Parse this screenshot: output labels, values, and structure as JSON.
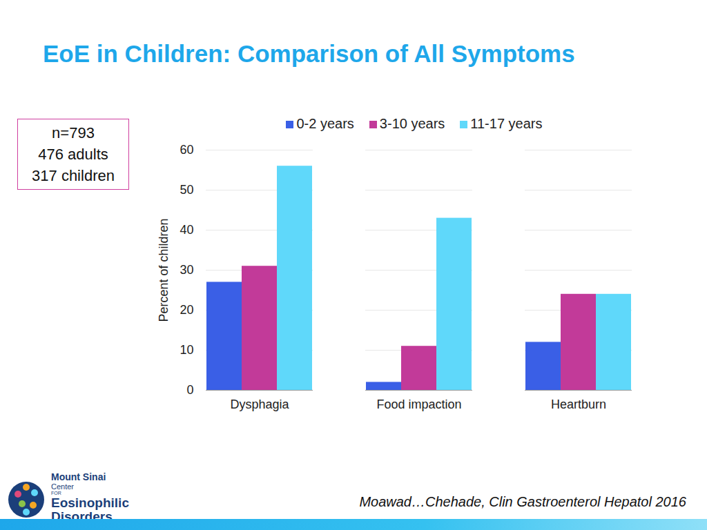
{
  "chart_data": {
    "type": "bar",
    "title": "EoE in Children: Comparison of All Symptoms",
    "y_label": "Percent of children",
    "categories": [
      "Dysphagia",
      "Food impaction",
      "Heartburn"
    ],
    "series": [
      {
        "name": "0-2 years",
        "color": "#3a5fe6",
        "values": [
          27,
          2,
          12
        ]
      },
      {
        "name": "3-10 years",
        "color": "#c23a99",
        "values": [
          31,
          11,
          24
        ]
      },
      {
        "name": "11-17 years",
        "color": "#5fd8fa",
        "values": [
          56,
          43,
          24
        ]
      }
    ],
    "ylim": [
      0,
      60
    ],
    "yticks": [
      0,
      10,
      20,
      30,
      40,
      50,
      60
    ],
    "grid": true,
    "legend": "top",
    "annotations": [
      "n=793",
      "476 adults",
      "317 children"
    ],
    "source": "Moawad…Chehade, Clin Gastroenterol Hepatol 2016",
    "logo": [
      "Mount Sinai",
      "Center",
      "FOR",
      "Eosinophilic",
      "Disorders"
    ]
  }
}
